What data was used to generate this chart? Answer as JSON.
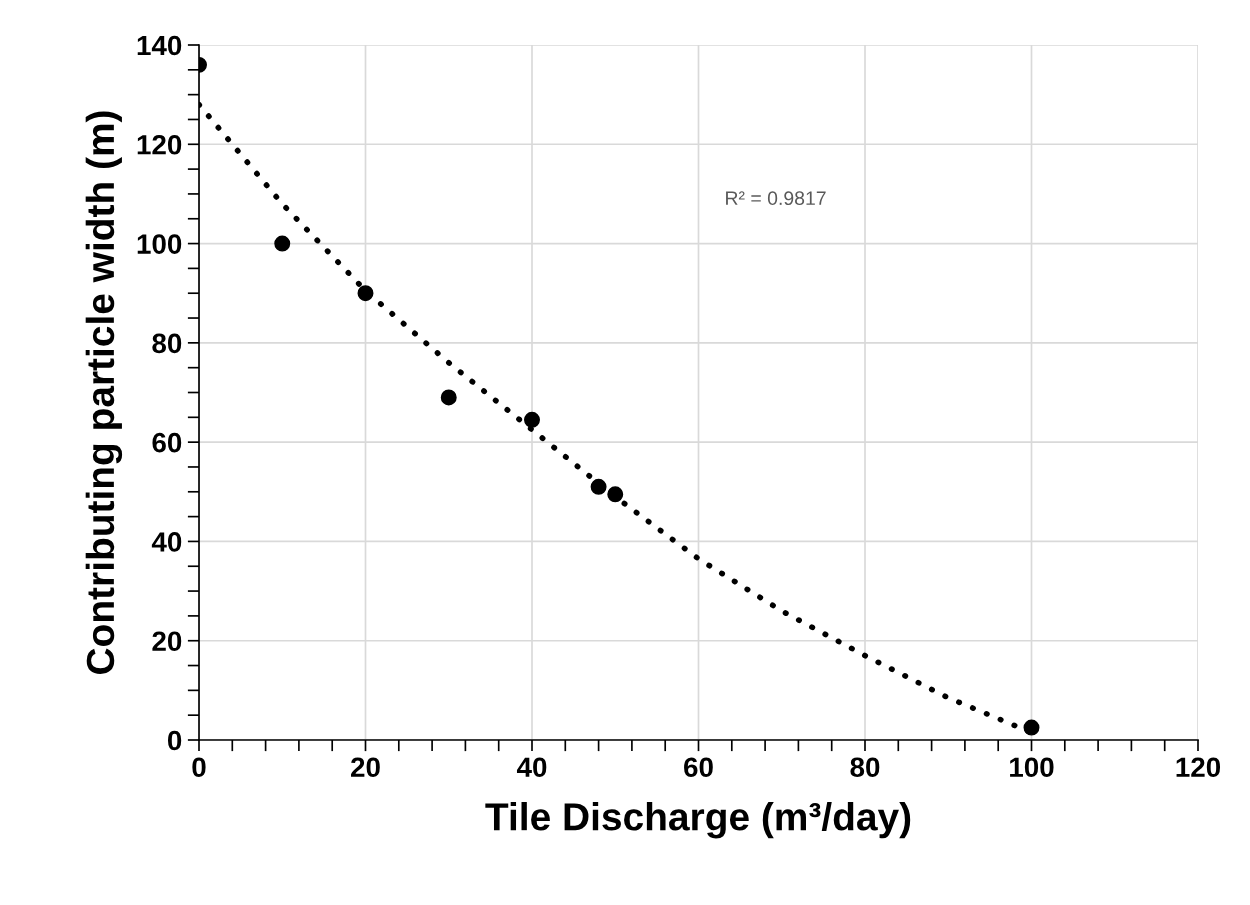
{
  "chart_data": {
    "type": "scatter",
    "xlabel": "Tile Discharge (m³/day)",
    "ylabel": "Contributing particle width (m)",
    "annotations": [
      "R² = 0.9817"
    ],
    "series": [
      {
        "color": "#000000",
        "marker": "circle",
        "x": [
          0,
          10,
          20,
          30,
          40,
          48,
          50,
          100
        ],
        "values": [
          136,
          100,
          90,
          69,
          64.5,
          51,
          49.5,
          2.5
        ]
      },
      {
        "type": "line",
        "color": "#000000",
        "line_style": "dotted",
        "marker": "none",
        "x": [
          0,
          10,
          20,
          30,
          40,
          50,
          60,
          70,
          80,
          90,
          100,
          101
        ],
        "values": [
          128,
          108,
          90.5,
          76,
          62.5,
          49,
          36.5,
          26,
          17,
          8.5,
          1.5,
          0.8
        ]
      }
    ],
    "xlim": [
      0,
      120
    ],
    "ylim": [
      0,
      140
    ],
    "xticks": [
      0,
      {
        "value": 4,
        "label": null
      },
      {
        "value": 8,
        "label": null
      },
      {
        "value": 12,
        "label": null
      },
      {
        "value": 16,
        "label": null
      },
      20,
      {
        "value": 24,
        "label": null
      },
      {
        "value": 28,
        "label": null
      },
      {
        "value": 32,
        "label": null
      },
      {
        "value": 36,
        "label": null
      },
      40,
      {
        "value": 44,
        "label": null
      },
      {
        "value": 48,
        "label": null
      },
      {
        "value": 52,
        "label": null
      },
      {
        "value": 56,
        "label": null
      },
      60,
      {
        "value": 64,
        "label": null
      },
      {
        "value": 68,
        "label": null
      },
      {
        "value": 72,
        "label": null
      },
      {
        "value": 76,
        "label": null
      },
      80,
      {
        "value": 84,
        "label": null
      },
      {
        "value": 88,
        "label": null
      },
      {
        "value": 92,
        "label": null
      },
      {
        "value": 96,
        "label": null
      },
      100,
      {
        "value": 104,
        "label": null
      },
      {
        "value": 108,
        "label": null
      },
      {
        "value": 112,
        "label": null
      },
      {
        "value": 116,
        "label": null
      },
      120
    ],
    "yticks": [
      0,
      {
        "value": 5,
        "label": null
      },
      {
        "value": 10,
        "label": null
      },
      {
        "value": 15,
        "label": null
      },
      20,
      {
        "value": 25,
        "label": null
      },
      {
        "value": 30,
        "label": null
      },
      {
        "value": 35,
        "label": null
      },
      40,
      {
        "value": 45,
        "label": null
      },
      {
        "value": 50,
        "label": null
      },
      {
        "value": 55,
        "label": null
      },
      60,
      {
        "value": 65,
        "label": null
      },
      {
        "value": 70,
        "label": null
      },
      {
        "value": 75,
        "label": null
      },
      80,
      {
        "value": 85,
        "label": null
      },
      {
        "value": 90,
        "label": null
      },
      {
        "value": 95,
        "label": null
      },
      100,
      {
        "value": 105,
        "label": null
      },
      {
        "value": 110,
        "label": null
      },
      {
        "value": 115,
        "label": null
      },
      120,
      {
        "value": 125,
        "label": null
      },
      {
        "value": 130,
        "label": null
      },
      {
        "value": 135,
        "label": null
      },
      140
    ],
    "grid": true
  }
}
